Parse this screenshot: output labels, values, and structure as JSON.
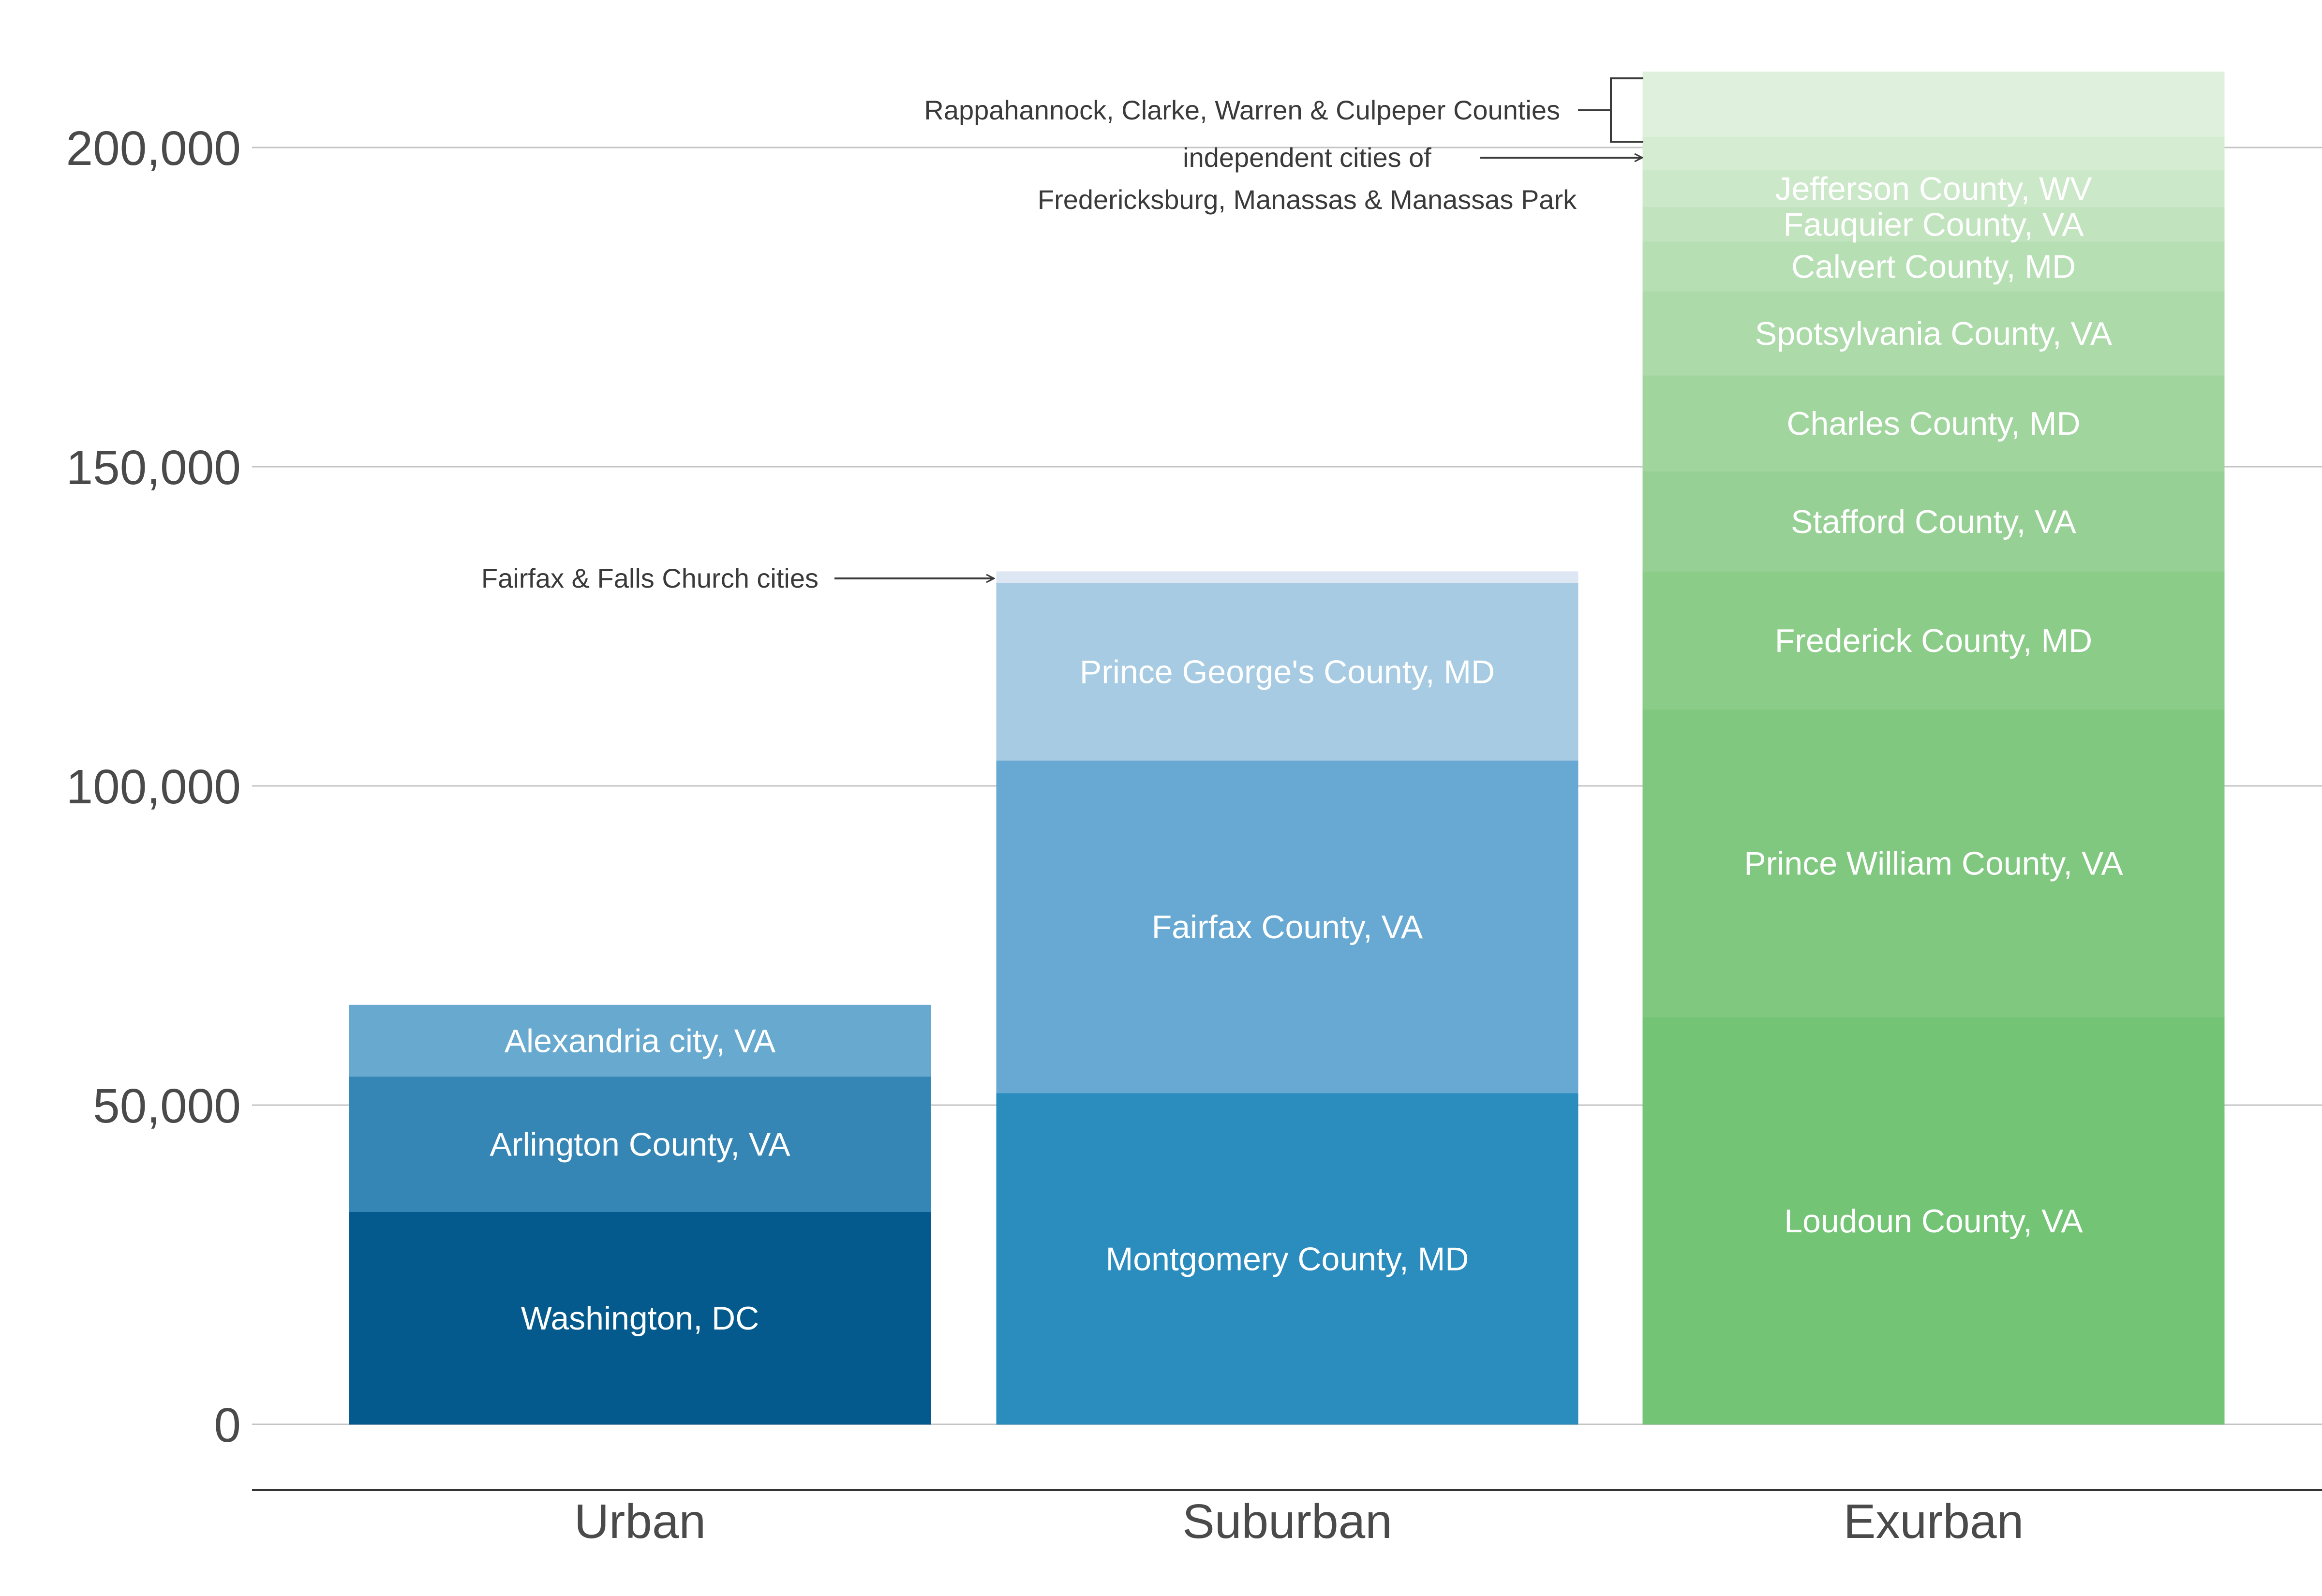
{
  "chart_data": {
    "type": "bar",
    "stacked": true,
    "title": "",
    "xlabel": "",
    "ylabel": "",
    "ylim": [
      -10000,
      218000
    ],
    "yticks": [
      0,
      50000,
      100000,
      150000,
      200000
    ],
    "ytick_labels": [
      "0",
      "50,000",
      "100,000",
      "150,000",
      "200,000"
    ],
    "grid": true,
    "categories": [
      "Urban",
      "Suburban",
      "Exurban"
    ],
    "stacks": [
      {
        "category": "Urban",
        "segments": [
          {
            "name": "Washington, DC",
            "value": 33300,
            "color": "#045a8d",
            "show_label": true
          },
          {
            "name": "Arlington County, VA",
            "value": 21200,
            "color": "#3585b5",
            "show_label": true
          },
          {
            "name": "Alexandria city, VA",
            "value": 11200,
            "color": "#67a9cf",
            "show_label": true
          }
        ]
      },
      {
        "category": "Suburban",
        "segments": [
          {
            "name": "Montgomery County, MD",
            "value": 51900,
            "color": "#2b8cbe",
            "show_label": true
          },
          {
            "name": "Fairfax County, VA",
            "value": 52100,
            "color": "#67a9d2",
            "show_label": true
          },
          {
            "name": "Prince George's County, MD",
            "value": 27800,
            "color": "#a6cbe2",
            "show_label": true
          },
          {
            "name": "Fairfax & Falls Church cities",
            "value": 1800,
            "color": "#dde7f3",
            "show_label": false
          }
        ]
      },
      {
        "category": "Exurban",
        "segments": [
          {
            "name": "Loudoun County, VA",
            "value": 63800,
            "color": "#74c476",
            "show_label": true
          },
          {
            "name": "Prince William County, VA",
            "value": 48200,
            "color": "#80c780",
            "show_label": true
          },
          {
            "name": "Frederick County, MD",
            "value": 21600,
            "color": "#8bcc89",
            "show_label": true
          },
          {
            "name": "Stafford County, VA",
            "value": 15700,
            "color": "#96d094",
            "show_label": true
          },
          {
            "name": "Charles County, MD",
            "value": 15000,
            "color": "#a1d59e",
            "show_label": true
          },
          {
            "name": "Spotsylvania County, VA",
            "value": 13200,
            "color": "#acdaa9",
            "show_label": true
          },
          {
            "name": "Calvert County, MD",
            "value": 7800,
            "color": "#b7dfb4",
            "show_label": true
          },
          {
            "name": "Fauquier County, VA",
            "value": 5400,
            "color": "#c1e3be",
            "show_label": true
          },
          {
            "name": "Jefferson County, WV",
            "value": 5800,
            "color": "#cbe8c8",
            "show_label": true
          },
          {
            "name": "Independent cities of Fredericksburg, Manassas & Manassas Park",
            "value": 5200,
            "color": "#d5ecd2",
            "show_label": false
          },
          {
            "name": "Rappahannock, Clarke, Warren & Culpeper Counties",
            "value": 10200,
            "color": "#dff1dc",
            "show_label": false
          }
        ]
      }
    ],
    "annotations": {
      "fairfax_cities": "Fairfax & Falls Church cities",
      "exurban_counties": "Rappahannock, Clarke, Warren & Culpeper Counties",
      "independent_cities_line1": "independent cities of",
      "independent_cities_line2": "Fredericksburg, Manassas & Manassas Park"
    }
  }
}
